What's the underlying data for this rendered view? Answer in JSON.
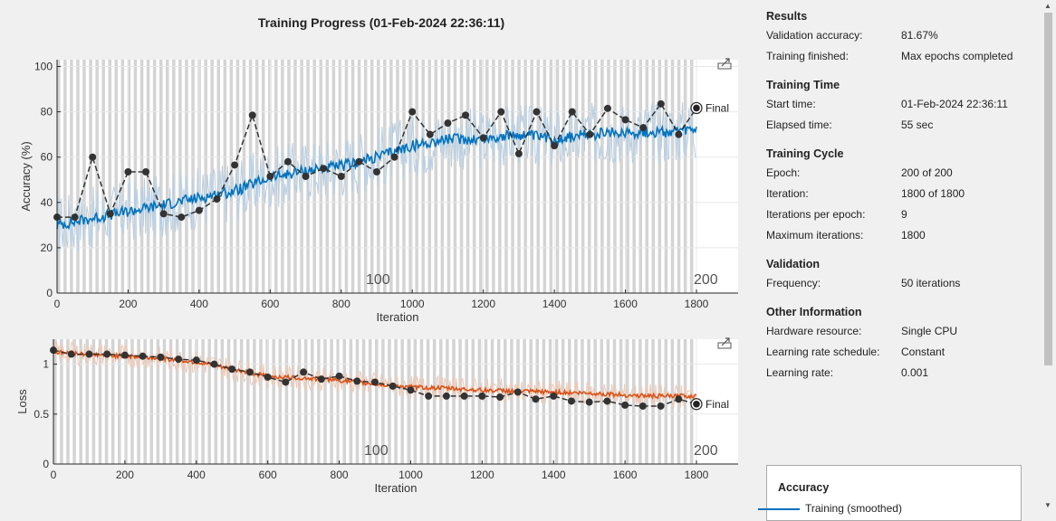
{
  "title": "Training Progress (01-Feb-2024 22:36:11)",
  "colors": {
    "accuracy_smoothed": "#0072bd",
    "accuracy_raw": "#b5cfe5",
    "loss_smoothed": "#d95319",
    "loss_raw": "#f0c8b2",
    "validation": "#333333",
    "epoch_band": "#d4d4d4"
  },
  "accuracy_plot": {
    "ylabel": "Accuracy (%)",
    "xlabel": "Iteration",
    "yticks": [
      "0",
      "20",
      "40",
      "60",
      "80",
      "100"
    ],
    "xticks": [
      "0",
      "200",
      "400",
      "600",
      "800",
      "1000",
      "1200",
      "1400",
      "1600",
      "1800"
    ],
    "epoch_labels": [
      "100",
      "200"
    ],
    "final_label": "Final",
    "export_icon": "export-icon"
  },
  "loss_plot": {
    "ylabel": "Loss",
    "xlabel": "Iteration",
    "yticks": [
      "0",
      "0.5",
      "1"
    ],
    "xticks": [
      "0",
      "200",
      "400",
      "600",
      "800",
      "1000",
      "1200",
      "1400",
      "1600",
      "1800"
    ],
    "epoch_labels": [
      "100",
      "200"
    ],
    "final_label": "Final",
    "export_icon": "export-icon"
  },
  "chart_data": [
    {
      "type": "line",
      "title": "",
      "xlabel": "Iteration",
      "ylabel": "Accuracy (%)",
      "xlim": [
        0,
        1800
      ],
      "ylim": [
        0,
        100
      ],
      "series": [
        {
          "name": "Training (smoothed)",
          "x": [
            0,
            100,
            200,
            300,
            400,
            500,
            600,
            700,
            800,
            900,
            1000,
            1100,
            1200,
            1300,
            1400,
            1500,
            1600,
            1700,
            1800
          ],
          "values": [
            30,
            33,
            36,
            39,
            42,
            45,
            51,
            54,
            56,
            60,
            65,
            68,
            68,
            70,
            68,
            70,
            71,
            71,
            72
          ]
        },
        {
          "name": "Validation",
          "x": [
            0,
            50,
            100,
            150,
            200,
            250,
            300,
            350,
            400,
            450,
            500,
            550,
            600,
            650,
            700,
            750,
            800,
            850,
            900,
            950,
            1000,
            1050,
            1100,
            1150,
            1200,
            1250,
            1300,
            1350,
            1400,
            1450,
            1500,
            1550,
            1600,
            1650,
            1700,
            1750,
            1800
          ],
          "values": [
            33.5,
            33.5,
            60,
            35,
            53.5,
            53.5,
            35,
            33.5,
            36.5,
            41.5,
            56.5,
            78.5,
            51.5,
            58,
            51.5,
            55,
            51.5,
            58,
            53.5,
            60,
            80,
            70,
            75,
            78.5,
            68.5,
            80,
            61.5,
            80,
            65,
            80,
            70,
            81.5,
            76.5,
            73,
            83.5,
            70,
            81.67
          ]
        }
      ],
      "epoch_bands": true,
      "annotations": [
        "100",
        "200",
        "Final"
      ]
    },
    {
      "type": "line",
      "title": "",
      "xlabel": "Iteration",
      "ylabel": "Loss",
      "xlim": [
        0,
        1800
      ],
      "ylim": [
        0,
        1.25
      ],
      "series": [
        {
          "name": "Training (smoothed)",
          "x": [
            0,
            100,
            200,
            300,
            400,
            500,
            600,
            700,
            800,
            900,
            1000,
            1100,
            1200,
            1300,
            1400,
            1500,
            1600,
            1700,
            1800
          ],
          "values": [
            1.12,
            1.1,
            1.08,
            1.06,
            1.02,
            0.95,
            0.88,
            0.86,
            0.84,
            0.8,
            0.77,
            0.76,
            0.74,
            0.73,
            0.72,
            0.71,
            0.69,
            0.68,
            0.68
          ]
        },
        {
          "name": "Validation",
          "x": [
            0,
            50,
            100,
            150,
            200,
            250,
            300,
            350,
            400,
            450,
            500,
            550,
            600,
            650,
            700,
            750,
            800,
            850,
            900,
            950,
            1000,
            1050,
            1100,
            1150,
            1200,
            1250,
            1300,
            1350,
            1400,
            1450,
            1500,
            1550,
            1600,
            1650,
            1700,
            1750,
            1800
          ],
          "values": [
            1.14,
            1.1,
            1.1,
            1.1,
            1.09,
            1.08,
            1.07,
            1.05,
            1.04,
            1.0,
            0.95,
            0.92,
            0.87,
            0.82,
            0.92,
            0.85,
            0.88,
            0.83,
            0.82,
            0.78,
            0.74,
            0.68,
            0.68,
            0.68,
            0.68,
            0.67,
            0.72,
            0.65,
            0.68,
            0.63,
            0.62,
            0.63,
            0.59,
            0.58,
            0.58,
            0.65,
            0.6
          ]
        }
      ],
      "epoch_bands": true,
      "annotations": [
        "100",
        "200",
        "Final"
      ]
    }
  ],
  "info": {
    "results": {
      "heading": "Results",
      "rows": [
        {
          "label": "Validation accuracy:",
          "value": "81.67%"
        },
        {
          "label": "Training finished:",
          "value": "Max epochs completed"
        }
      ]
    },
    "training_time": {
      "heading": "Training Time",
      "rows": [
        {
          "label": "Start time:",
          "value": "01-Feb-2024 22:36:11"
        },
        {
          "label": "Elapsed time:",
          "value": "55 sec"
        }
      ]
    },
    "training_cycle": {
      "heading": "Training Cycle",
      "rows": [
        {
          "label": "Epoch:",
          "value": "200 of 200"
        },
        {
          "label": "Iteration:",
          "value": "1800 of 1800"
        },
        {
          "label": "Iterations per epoch:",
          "value": "9"
        },
        {
          "label": "Maximum iterations:",
          "value": "1800"
        }
      ]
    },
    "validation": {
      "heading": "Validation",
      "rows": [
        {
          "label": "Frequency:",
          "value": "50 iterations"
        }
      ]
    },
    "other": {
      "heading": "Other Information",
      "rows": [
        {
          "label": "Hardware resource:",
          "value": "Single CPU"
        },
        {
          "label": "Learning rate schedule:",
          "value": "Constant"
        },
        {
          "label": "Learning rate:",
          "value": "0.001"
        }
      ]
    }
  },
  "legend": {
    "heading": "Accuracy",
    "item": "Training (smoothed)"
  },
  "scrollbar": {
    "up_icon": "scroll-up-arrow-icon",
    "down_icon": "scroll-down-arrow-icon"
  }
}
